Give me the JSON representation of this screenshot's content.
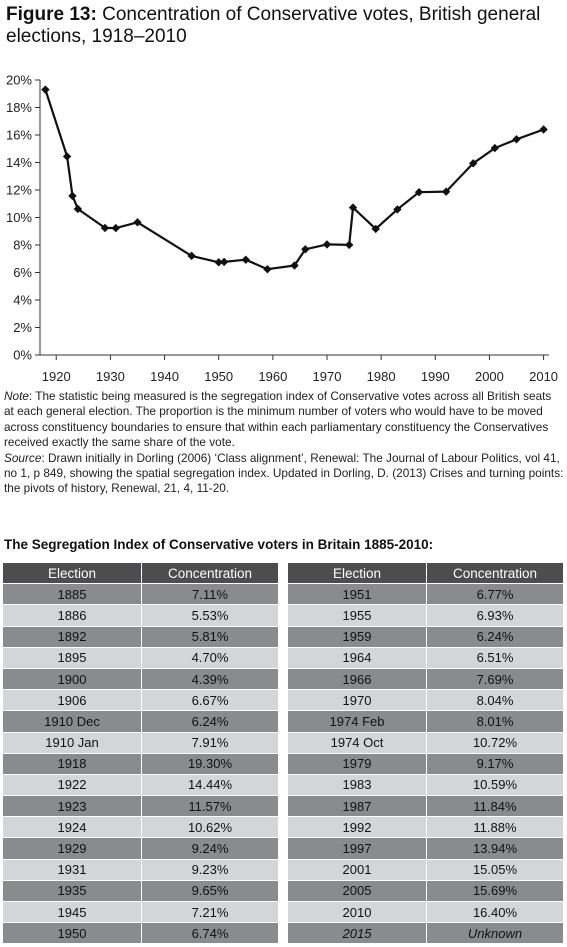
{
  "figure": {
    "label": "Figure 13:",
    "title": "Concentration of Conservative votes, British general elections, 1918–2010"
  },
  "note": {
    "note_label": "Note",
    "note_text": ":  The statistic being measured is the segregation index of Conservative votes across all British seats at each general election. The proportion is the minimum number of voters who would have to be moved across constituency boundaries to ensure that within each parliamentary constituency the Conservatives received exactly the same share of the vote.",
    "source_label": "Source",
    "source_text": ":  Drawn initially in Dorling (2006) ‘Class alignment’, Renewal: The Journal of Labour Politics, vol 41, no 1, p 849, showing the spatial segregation index. Updated in Dorling, D. (2013) Crises and turning points: the pivots of history, Renewal, 21, 4, 11-20."
  },
  "chart_data": {
    "type": "line",
    "title": "Concentration of Conservative votes, British general elections, 1918–2010",
    "xlabel": "",
    "ylabel": "",
    "xlim": [
      1917,
      2011
    ],
    "ylim": [
      0,
      20
    ],
    "x_ticks": [
      1920,
      1930,
      1940,
      1950,
      1960,
      1970,
      1980,
      1990,
      2000,
      2010
    ],
    "y_ticks": [
      "0%",
      "2%",
      "4%",
      "6%",
      "8%",
      "10%",
      "12%",
      "14%",
      "16%",
      "18%",
      "20%"
    ],
    "grid": false,
    "marker": "diamond",
    "series": [
      {
        "x": [
          1918,
          1922,
          1923,
          1924,
          1929,
          1931,
          1935,
          1945,
          1950,
          1951,
          1955,
          1959,
          1964,
          1966,
          1970,
          1974.1,
          1974.8,
          1979,
          1983,
          1987,
          1992,
          1997,
          2001,
          2005,
          2010
        ],
        "y": [
          19.3,
          14.44,
          11.57,
          10.62,
          9.24,
          9.23,
          9.65,
          7.21,
          6.74,
          6.77,
          6.93,
          6.24,
          6.51,
          7.69,
          8.04,
          8.01,
          10.72,
          9.17,
          10.59,
          11.84,
          11.88,
          13.94,
          15.05,
          15.69,
          16.4
        ]
      }
    ]
  },
  "table": {
    "title": "The Segregation Index of Conservative voters in Britain 1885-2010:",
    "headers": [
      "Election",
      "Concentration"
    ],
    "left_rows": [
      [
        "1885",
        "7.11%"
      ],
      [
        "1886",
        "5.53%"
      ],
      [
        "1892",
        "5.81%"
      ],
      [
        "1895",
        "4.70%"
      ],
      [
        "1900",
        "4.39%"
      ],
      [
        "1906",
        "6.67%"
      ],
      [
        "1910 Dec",
        "6.24%"
      ],
      [
        "1910 Jan",
        "7.91%"
      ],
      [
        "1918",
        "19.30%"
      ],
      [
        "1922",
        "14.44%"
      ],
      [
        "1923",
        "11.57%"
      ],
      [
        "1924",
        "10.62%"
      ],
      [
        "1929",
        "9.24%"
      ],
      [
        "1931",
        "9.23%"
      ],
      [
        "1935",
        "9.65%"
      ],
      [
        "1945",
        "7.21%"
      ],
      [
        "1950",
        "6.74%"
      ]
    ],
    "right_rows": [
      [
        "1951",
        "6.77%"
      ],
      [
        "1955",
        "6.93%"
      ],
      [
        "1959",
        "6.24%"
      ],
      [
        "1964",
        "6.51%"
      ],
      [
        "1966",
        "7.69%"
      ],
      [
        "1970",
        "8.04%"
      ],
      [
        "1974 Feb",
        "8.01%"
      ],
      [
        "1974 Oct",
        "10.72%"
      ],
      [
        "1979",
        "9.17%"
      ],
      [
        "1983",
        "10.59%"
      ],
      [
        "1987",
        "11.84%"
      ],
      [
        "1992",
        "11.88%"
      ],
      [
        "1997",
        "13.94%"
      ],
      [
        "2001",
        "15.05%"
      ],
      [
        "2005",
        "15.69%"
      ],
      [
        "2010",
        "16.40%"
      ],
      [
        "2015",
        "Unknown"
      ]
    ]
  }
}
